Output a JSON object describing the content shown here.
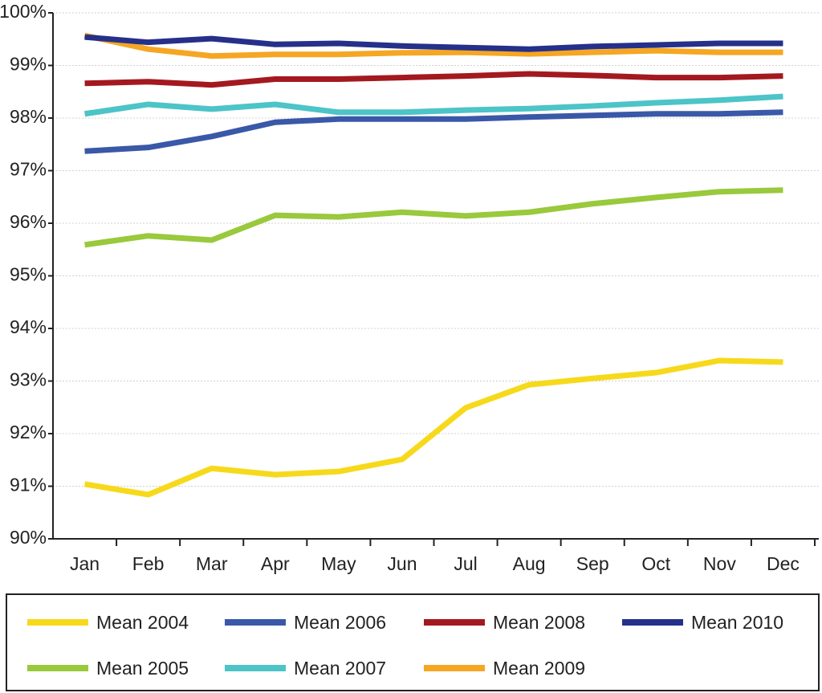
{
  "chart_data": {
    "type": "line",
    "categories": [
      "Jan",
      "Feb",
      "Mar",
      "Apr",
      "May",
      "Jun",
      "Jul",
      "Aug",
      "Sep",
      "Oct",
      "Nov",
      "Dec"
    ],
    "ylim": [
      90,
      100
    ],
    "yticks": [
      {
        "value": 90,
        "label": "90%"
      },
      {
        "value": 91,
        "label": "91%"
      },
      {
        "value": 92,
        "label": "92%"
      },
      {
        "value": 93,
        "label": "93%"
      },
      {
        "value": 94,
        "label": "94%"
      },
      {
        "value": 95,
        "label": "95%"
      },
      {
        "value": 96,
        "label": "96%"
      },
      {
        "value": 97,
        "label": "97%"
      },
      {
        "value": 98,
        "label": "98%"
      },
      {
        "value": 99,
        "label": "99%"
      },
      {
        "value": 100,
        "label": "100%"
      }
    ],
    "grid": true,
    "legend": "bottom",
    "series": [
      {
        "name": "Mean 2004",
        "color": "#f7d91c",
        "values": [
          91.04,
          90.84,
          91.34,
          91.22,
          91.28,
          91.51,
          92.49,
          92.93,
          93.05,
          93.16,
          93.39,
          93.36
        ]
      },
      {
        "name": "Mean 2005",
        "color": "#99c93c",
        "values": [
          95.59,
          95.76,
          95.68,
          96.15,
          96.12,
          96.21,
          96.14,
          96.21,
          96.37,
          96.49,
          96.6,
          96.63
        ]
      },
      {
        "name": "Mean 2006",
        "color": "#3a58a8",
        "values": [
          97.37,
          97.44,
          97.65,
          97.92,
          97.98,
          97.98,
          97.98,
          98.02,
          98.05,
          98.08,
          98.08,
          98.11
        ]
      },
      {
        "name": "Mean 2007",
        "color": "#4cc4c8",
        "values": [
          98.08,
          98.26,
          98.17,
          98.26,
          98.11,
          98.11,
          98.15,
          98.18,
          98.23,
          98.29,
          98.34,
          98.41
        ]
      },
      {
        "name": "Mean 2008",
        "color": "#a3191f",
        "values": [
          98.66,
          98.69,
          98.63,
          98.74,
          98.74,
          98.77,
          98.8,
          98.84,
          98.81,
          98.77,
          98.77,
          98.8
        ]
      },
      {
        "name": "Mean 2009",
        "color": "#f5a623",
        "values": [
          99.57,
          99.31,
          99.18,
          99.21,
          99.21,
          99.24,
          99.25,
          99.22,
          99.25,
          99.28,
          99.25,
          99.25
        ]
      },
      {
        "name": "Mean 2010",
        "color": "#25308a",
        "values": [
          99.54,
          99.44,
          99.51,
          99.4,
          99.42,
          99.37,
          99.34,
          99.31,
          99.36,
          99.39,
          99.42,
          99.42
        ]
      }
    ]
  }
}
